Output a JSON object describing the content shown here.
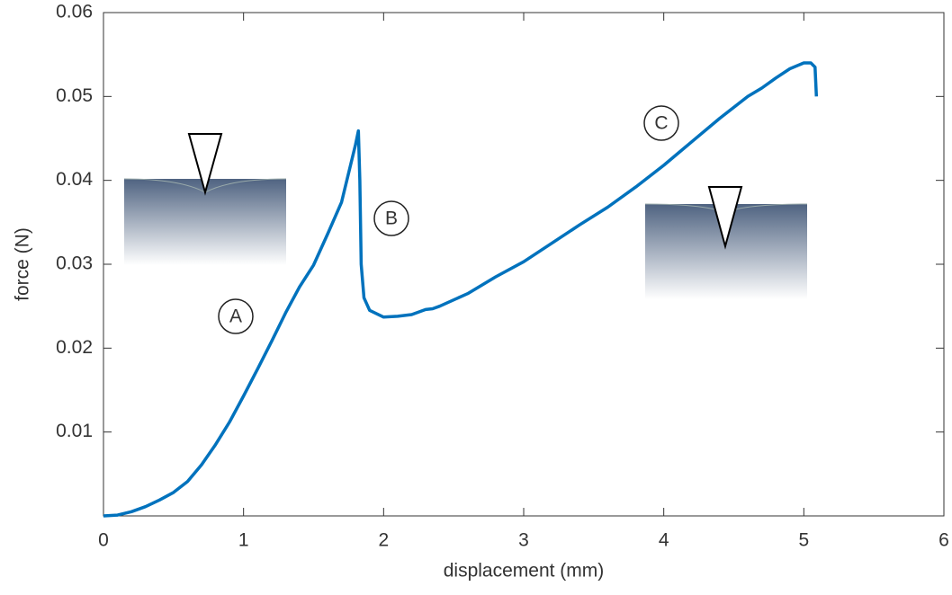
{
  "chart_data": {
    "type": "line",
    "x_label": "displacement (mm)",
    "y_label": "force (N)",
    "xlim": [
      0,
      6
    ],
    "xticks": [
      0,
      1,
      2,
      3,
      4,
      5,
      6
    ],
    "ylim": [
      0,
      0.06
    ],
    "yticks": [
      0.01,
      0.02,
      0.03,
      0.04,
      0.05,
      0.06
    ],
    "annotations": [
      "A",
      "B",
      "C"
    ],
    "series": [
      {
        "color": "#0072BD",
        "x": [
          0,
          0.1,
          0.2,
          0.3,
          0.4,
          0.5,
          0.6,
          0.7,
          0.8,
          0.9,
          1.0,
          1.1,
          1.2,
          1.3,
          1.4,
          1.5,
          1.6,
          1.7,
          1.8,
          1.82,
          1.83,
          1.84,
          1.86,
          1.9,
          2.0,
          2.1,
          2.2,
          2.3,
          2.35,
          2.4,
          2.6,
          2.8,
          3.0,
          3.2,
          3.4,
          3.6,
          3.8,
          4.0,
          4.2,
          4.4,
          4.6,
          4.7,
          4.8,
          4.9,
          5.0,
          5.05,
          5.08,
          5.09
        ],
        "values": [
          0,
          0.0001,
          0.0005,
          0.0011,
          0.0019,
          0.0028,
          0.0041,
          0.0061,
          0.0085,
          0.0112,
          0.0143,
          0.0175,
          0.0208,
          0.0242,
          0.0273,
          0.0299,
          0.0336,
          0.0374,
          0.0443,
          0.0459,
          0.04,
          0.03,
          0.026,
          0.0245,
          0.0237,
          0.0238,
          0.024,
          0.0246,
          0.0247,
          0.025,
          0.0265,
          0.0285,
          0.0303,
          0.0325,
          0.0347,
          0.0368,
          0.0392,
          0.0418,
          0.0446,
          0.0474,
          0.05,
          0.051,
          0.0522,
          0.0533,
          0.054,
          0.054,
          0.0535,
          0.05
        ]
      }
    ]
  }
}
